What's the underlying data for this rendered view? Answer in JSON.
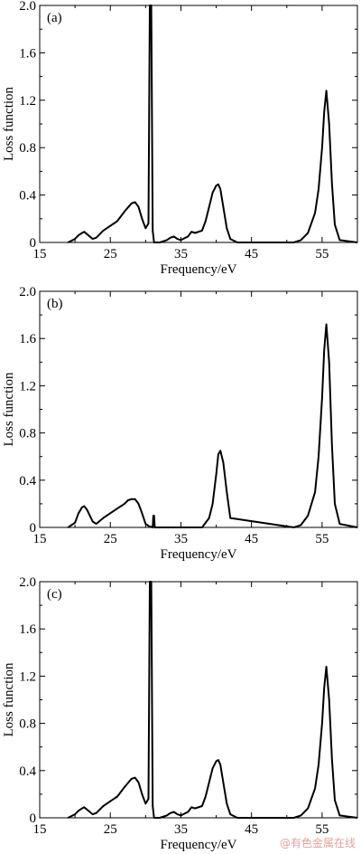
{
  "chart_data": [
    {
      "type": "line",
      "panel_label": "(a)",
      "xlabel": "Frequency/eV",
      "ylabel": "Loss function",
      "xlim": [
        15,
        60
      ],
      "ylim": [
        0,
        2.0
      ],
      "xticks": [
        "15",
        "25",
        "35",
        "45",
        "55"
      ],
      "yticks": [
        "0",
        "0.4",
        "0.8",
        "1.2",
        "1.6",
        "2.0"
      ],
      "grid": false,
      "series": [
        {
          "x": [
            19,
            20,
            20.5,
            21,
            21.3,
            21.7,
            22.5,
            23,
            24,
            25,
            26,
            27,
            28,
            28.5,
            29,
            29.5,
            30,
            30.4,
            30.6,
            30.8,
            31,
            31.2,
            32,
            33,
            33.5,
            34,
            34.5,
            35,
            36,
            36.5,
            37,
            38,
            38.5,
            39,
            39.5,
            40,
            40.3,
            40.6,
            41,
            41.5,
            42,
            43,
            51,
            52,
            53,
            54,
            54.5,
            55,
            55.3,
            55.6,
            56,
            56.4,
            56.8,
            57.5,
            60
          ],
          "y": [
            0,
            0.03,
            0.06,
            0.08,
            0.09,
            0.07,
            0.03,
            0.04,
            0.1,
            0.14,
            0.18,
            0.26,
            0.33,
            0.34,
            0.3,
            0.2,
            0.12,
            0.16,
            2.0,
            2.0,
            0.1,
            0,
            0,
            0.02,
            0.04,
            0.05,
            0.03,
            0.02,
            0.05,
            0.09,
            0.08,
            0.1,
            0.18,
            0.3,
            0.42,
            0.48,
            0.49,
            0.45,
            0.3,
            0.12,
            0.03,
            0,
            0,
            0.02,
            0.08,
            0.25,
            0.45,
            0.8,
            1.1,
            1.28,
            1.0,
            0.5,
            0.15,
            0.02,
            0
          ]
        }
      ]
    },
    {
      "type": "line",
      "panel_label": "(b)",
      "xlabel": "Frequency/eV",
      "ylabel": "Loss function",
      "xlim": [
        15,
        60
      ],
      "ylim": [
        0,
        2.0
      ],
      "xticks": [
        "15",
        "25",
        "35",
        "45",
        "55"
      ],
      "yticks": [
        "0",
        "0.4",
        "0.8",
        "1.2",
        "1.6",
        "2.0"
      ],
      "grid": false,
      "series": [
        {
          "x": [
            19,
            20,
            20.5,
            21,
            21.3,
            21.7,
            22.5,
            23,
            24,
            25,
            26,
            27,
            27.5,
            28,
            28.5,
            29,
            29.5,
            30,
            30.5,
            31,
            31.1,
            31.2,
            31.3,
            31.4,
            32,
            38,
            39,
            39.5,
            40,
            40.3,
            40.6,
            41,
            41.5,
            42,
            51,
            52,
            53,
            54,
            54.5,
            55,
            55.3,
            55.6,
            56,
            56.4,
            56.8,
            57.5,
            60
          ],
          "y": [
            0,
            0.04,
            0.12,
            0.17,
            0.18,
            0.15,
            0.05,
            0.03,
            0.08,
            0.12,
            0.16,
            0.2,
            0.23,
            0.24,
            0.24,
            0.2,
            0.12,
            0.03,
            0.01,
            0,
            0.1,
            0.1,
            0,
            0,
            0,
            0,
            0.08,
            0.2,
            0.45,
            0.62,
            0.65,
            0.55,
            0.3,
            0.08,
            0,
            0.02,
            0.1,
            0.3,
            0.6,
            1.1,
            1.5,
            1.72,
            1.4,
            0.7,
            0.2,
            0.03,
            0
          ]
        }
      ]
    },
    {
      "type": "line",
      "panel_label": "(c)",
      "xlabel": "Frequency/eV",
      "ylabel": "Loss function",
      "xlim": [
        15,
        60
      ],
      "ylim": [
        0,
        2.0
      ],
      "xticks": [
        "15",
        "25",
        "35",
        "45",
        "55"
      ],
      "yticks": [
        "0",
        "0.4",
        "0.8",
        "1.2",
        "1.6",
        "2.0"
      ],
      "grid": false,
      "series": [
        {
          "x": [
            19,
            20,
            20.5,
            21,
            21.3,
            21.7,
            22.5,
            23,
            24,
            25,
            26,
            27,
            28,
            28.5,
            29,
            29.5,
            30,
            30.4,
            30.6,
            30.8,
            31,
            31.2,
            32,
            33,
            33.5,
            34,
            34.5,
            35,
            36,
            36.5,
            37,
            38,
            38.5,
            39,
            39.5,
            40,
            40.3,
            40.6,
            41,
            41.5,
            42,
            43,
            51,
            52,
            53,
            54,
            54.5,
            55,
            55.3,
            55.6,
            56,
            56.4,
            56.8,
            57.5,
            60
          ],
          "y": [
            0,
            0.03,
            0.06,
            0.08,
            0.09,
            0.07,
            0.03,
            0.04,
            0.1,
            0.14,
            0.18,
            0.26,
            0.33,
            0.34,
            0.3,
            0.2,
            0.12,
            0.16,
            2.0,
            2.0,
            0.1,
            0,
            0,
            0.02,
            0.04,
            0.05,
            0.03,
            0.02,
            0.05,
            0.09,
            0.08,
            0.1,
            0.18,
            0.3,
            0.42,
            0.48,
            0.49,
            0.45,
            0.3,
            0.12,
            0.03,
            0,
            0,
            0.02,
            0.08,
            0.25,
            0.45,
            0.8,
            1.1,
            1.28,
            1.0,
            0.5,
            0.15,
            0.02,
            0
          ]
        }
      ]
    }
  ],
  "watermark": "@有色金属在线"
}
